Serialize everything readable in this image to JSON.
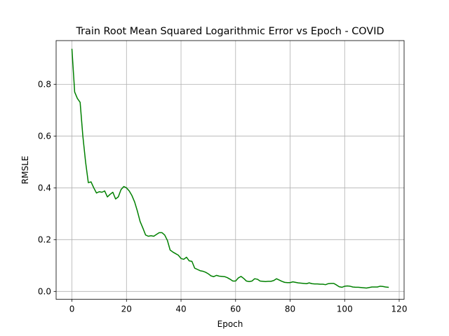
{
  "chart_data": {
    "type": "line",
    "title": "Train Root Mean Squared Logarithmic Error vs Epoch - COVID",
    "xlabel": "Epoch",
    "ylabel": "RMSLE",
    "xlim": [
      -5.8,
      121.8
    ],
    "ylim": [
      -0.0305,
      0.9685
    ],
    "xticks": [
      0,
      20,
      40,
      60,
      80,
      100,
      120
    ],
    "yticks": [
      0.0,
      0.2,
      0.4,
      0.6,
      0.8
    ],
    "xtick_labels": [
      "0",
      "20",
      "40",
      "60",
      "80",
      "100",
      "120"
    ],
    "ytick_labels": [
      "0.0",
      "0.2",
      "0.4",
      "0.6",
      "0.8"
    ],
    "grid": true,
    "legend": "none",
    "series": [
      {
        "color": "#008000",
        "x": [
          0,
          1,
          2,
          3,
          4,
          5,
          6,
          7,
          8,
          9,
          10,
          11,
          12,
          13,
          14,
          15,
          16,
          17,
          18,
          19,
          20,
          21,
          22,
          23,
          24,
          25,
          26,
          27,
          28,
          29,
          30,
          31,
          32,
          33,
          34,
          35,
          36,
          37,
          38,
          39,
          40,
          41,
          42,
          43,
          44,
          45,
          46,
          47,
          48,
          49,
          50,
          51,
          52,
          53,
          54,
          55,
          56,
          57,
          58,
          59,
          60,
          61,
          62,
          63,
          64,
          65,
          66,
          67,
          68,
          69,
          70,
          71,
          72,
          73,
          74,
          75,
          76,
          77,
          78,
          79,
          80,
          81,
          82,
          83,
          84,
          85,
          86,
          87,
          88,
          89,
          90,
          91,
          92,
          93,
          94,
          95,
          96,
          97,
          98,
          99,
          100,
          101,
          102,
          103,
          104,
          105,
          106,
          107,
          108,
          109,
          110,
          111,
          112,
          113,
          114,
          115,
          116
        ],
        "y": [
          0.935,
          0.77,
          0.745,
          0.73,
          0.6,
          0.5,
          0.42,
          0.423,
          0.4,
          0.38,
          0.385,
          0.383,
          0.388,
          0.365,
          0.375,
          0.383,
          0.357,
          0.365,
          0.393,
          0.405,
          0.4,
          0.388,
          0.37,
          0.345,
          0.31,
          0.27,
          0.245,
          0.218,
          0.213,
          0.215,
          0.213,
          0.22,
          0.227,
          0.227,
          0.218,
          0.197,
          0.16,
          0.152,
          0.146,
          0.14,
          0.127,
          0.124,
          0.132,
          0.118,
          0.116,
          0.09,
          0.085,
          0.08,
          0.078,
          0.074,
          0.068,
          0.06,
          0.057,
          0.062,
          0.059,
          0.058,
          0.057,
          0.053,
          0.047,
          0.04,
          0.04,
          0.052,
          0.058,
          0.05,
          0.04,
          0.038,
          0.04,
          0.049,
          0.047,
          0.04,
          0.039,
          0.038,
          0.039,
          0.039,
          0.042,
          0.049,
          0.044,
          0.039,
          0.035,
          0.034,
          0.034,
          0.037,
          0.035,
          0.033,
          0.032,
          0.031,
          0.03,
          0.033,
          0.03,
          0.029,
          0.029,
          0.028,
          0.028,
          0.026,
          0.03,
          0.031,
          0.031,
          0.025,
          0.018,
          0.016,
          0.02,
          0.021,
          0.02,
          0.017,
          0.016,
          0.016,
          0.015,
          0.014,
          0.013,
          0.015,
          0.017,
          0.017,
          0.017,
          0.02,
          0.019,
          0.017,
          0.016
        ]
      }
    ]
  }
}
